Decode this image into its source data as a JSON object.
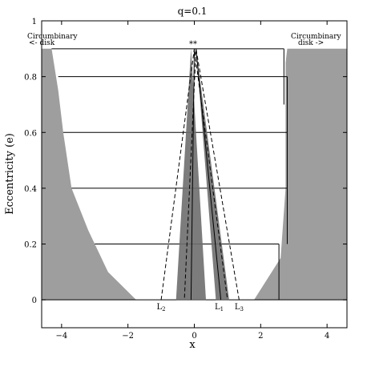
{
  "chart_data": {
    "type": "area",
    "title": "q=0.1",
    "xlabel": "x",
    "ylabel": "Eccentricity (e)",
    "xlim": [
      -4.6,
      4.6
    ],
    "ylim": [
      -0.1,
      1.0
    ],
    "grid": false,
    "x_ticks": [
      -4,
      -2,
      0,
      2,
      4
    ],
    "x_tick_labels": [
      "−4",
      "−2",
      "0",
      "2",
      "4"
    ],
    "y_ticks": [
      0,
      0.2,
      0.4,
      0.6,
      0.8,
      1
    ],
    "y_tick_labels": [
      "0",
      "0.2",
      "0.4",
      "0.6",
      "0.8",
      "1"
    ],
    "annotations": {
      "left_disk": [
        "Circumbinary",
        "<- disk"
      ],
      "right_disk": [
        "Circumbinary",
        "disk ->"
      ],
      "stars": "**",
      "lagrange": [
        "L2",
        "L1",
        "L3"
      ]
    },
    "lagrange_points": [
      {
        "label": "L2",
        "x": -1.0,
        "y": 0
      },
      {
        "label": "L1",
        "x": 0.75,
        "y": 0
      },
      {
        "label": "L3",
        "x": 1.35,
        "y": 0
      }
    ],
    "disk_regions": [
      {
        "name": "left circumbinary disk",
        "color": "#9e9e9e",
        "points": [
          [
            -4.6,
            0
          ],
          [
            -1.75,
            0
          ],
          [
            -2.6,
            0.1
          ],
          [
            -3.2,
            0.25
          ],
          [
            -3.7,
            0.4
          ],
          [
            -3.95,
            0.6
          ],
          [
            -4.1,
            0.75
          ],
          [
            -4.3,
            0.9
          ],
          [
            -4.6,
            0.9
          ]
        ]
      },
      {
        "name": "right circumbinary disk",
        "color": "#9e9e9e",
        "points": [
          [
            4.6,
            0
          ],
          [
            1.8,
            0
          ],
          [
            2.6,
            0.15
          ],
          [
            2.75,
            0.4
          ],
          [
            2.75,
            0.85
          ],
          [
            2.8,
            0.9
          ],
          [
            4.6,
            0.9
          ]
        ]
      }
    ],
    "inner_regions": [
      {
        "name": "primary orbit band",
        "color": "#6e6e6e",
        "points": [
          [
            -0.55,
            0
          ],
          [
            -0.1,
            0.9
          ],
          [
            0.35,
            0
          ]
        ]
      },
      {
        "name": "secondary orbit band",
        "color": "#6e6e6e",
        "points": [
          [
            0.65,
            0
          ],
          [
            0.05,
            0.9
          ],
          [
            1.05,
            0
          ]
        ]
      }
    ],
    "inner_lines": [
      {
        "name": "center line",
        "points": [
          [
            -0.1,
            0
          ],
          [
            0.0,
            0.9
          ]
        ]
      },
      {
        "name": "secondary line",
        "points": [
          [
            0.8,
            0
          ],
          [
            0.05,
            0.9
          ]
        ]
      }
    ],
    "dashed_lines": [
      {
        "name": "L2 envelope",
        "points": [
          [
            -1.0,
            0
          ],
          [
            0.0,
            0.9
          ],
          [
            1.0,
            0
          ]
        ]
      },
      {
        "name": "L3 envelope",
        "points": [
          [
            1.35,
            0
          ],
          [
            0.05,
            0.9
          ],
          [
            -0.3,
            0
          ]
        ]
      }
    ],
    "eccentricity_levels": [
      {
        "e": 0.2,
        "x_from": -3.0,
        "x_to": 2.55
      },
      {
        "e": 0.4,
        "x_from": -3.7,
        "x_to": 2.8
      },
      {
        "e": 0.6,
        "x_from": -3.95,
        "x_to": 2.8
      },
      {
        "e": 0.8,
        "x_from": -4.1,
        "x_to": 2.8
      },
      {
        "e": 0.9,
        "x_from": -4.3,
        "x_to": 2.7
      }
    ]
  }
}
